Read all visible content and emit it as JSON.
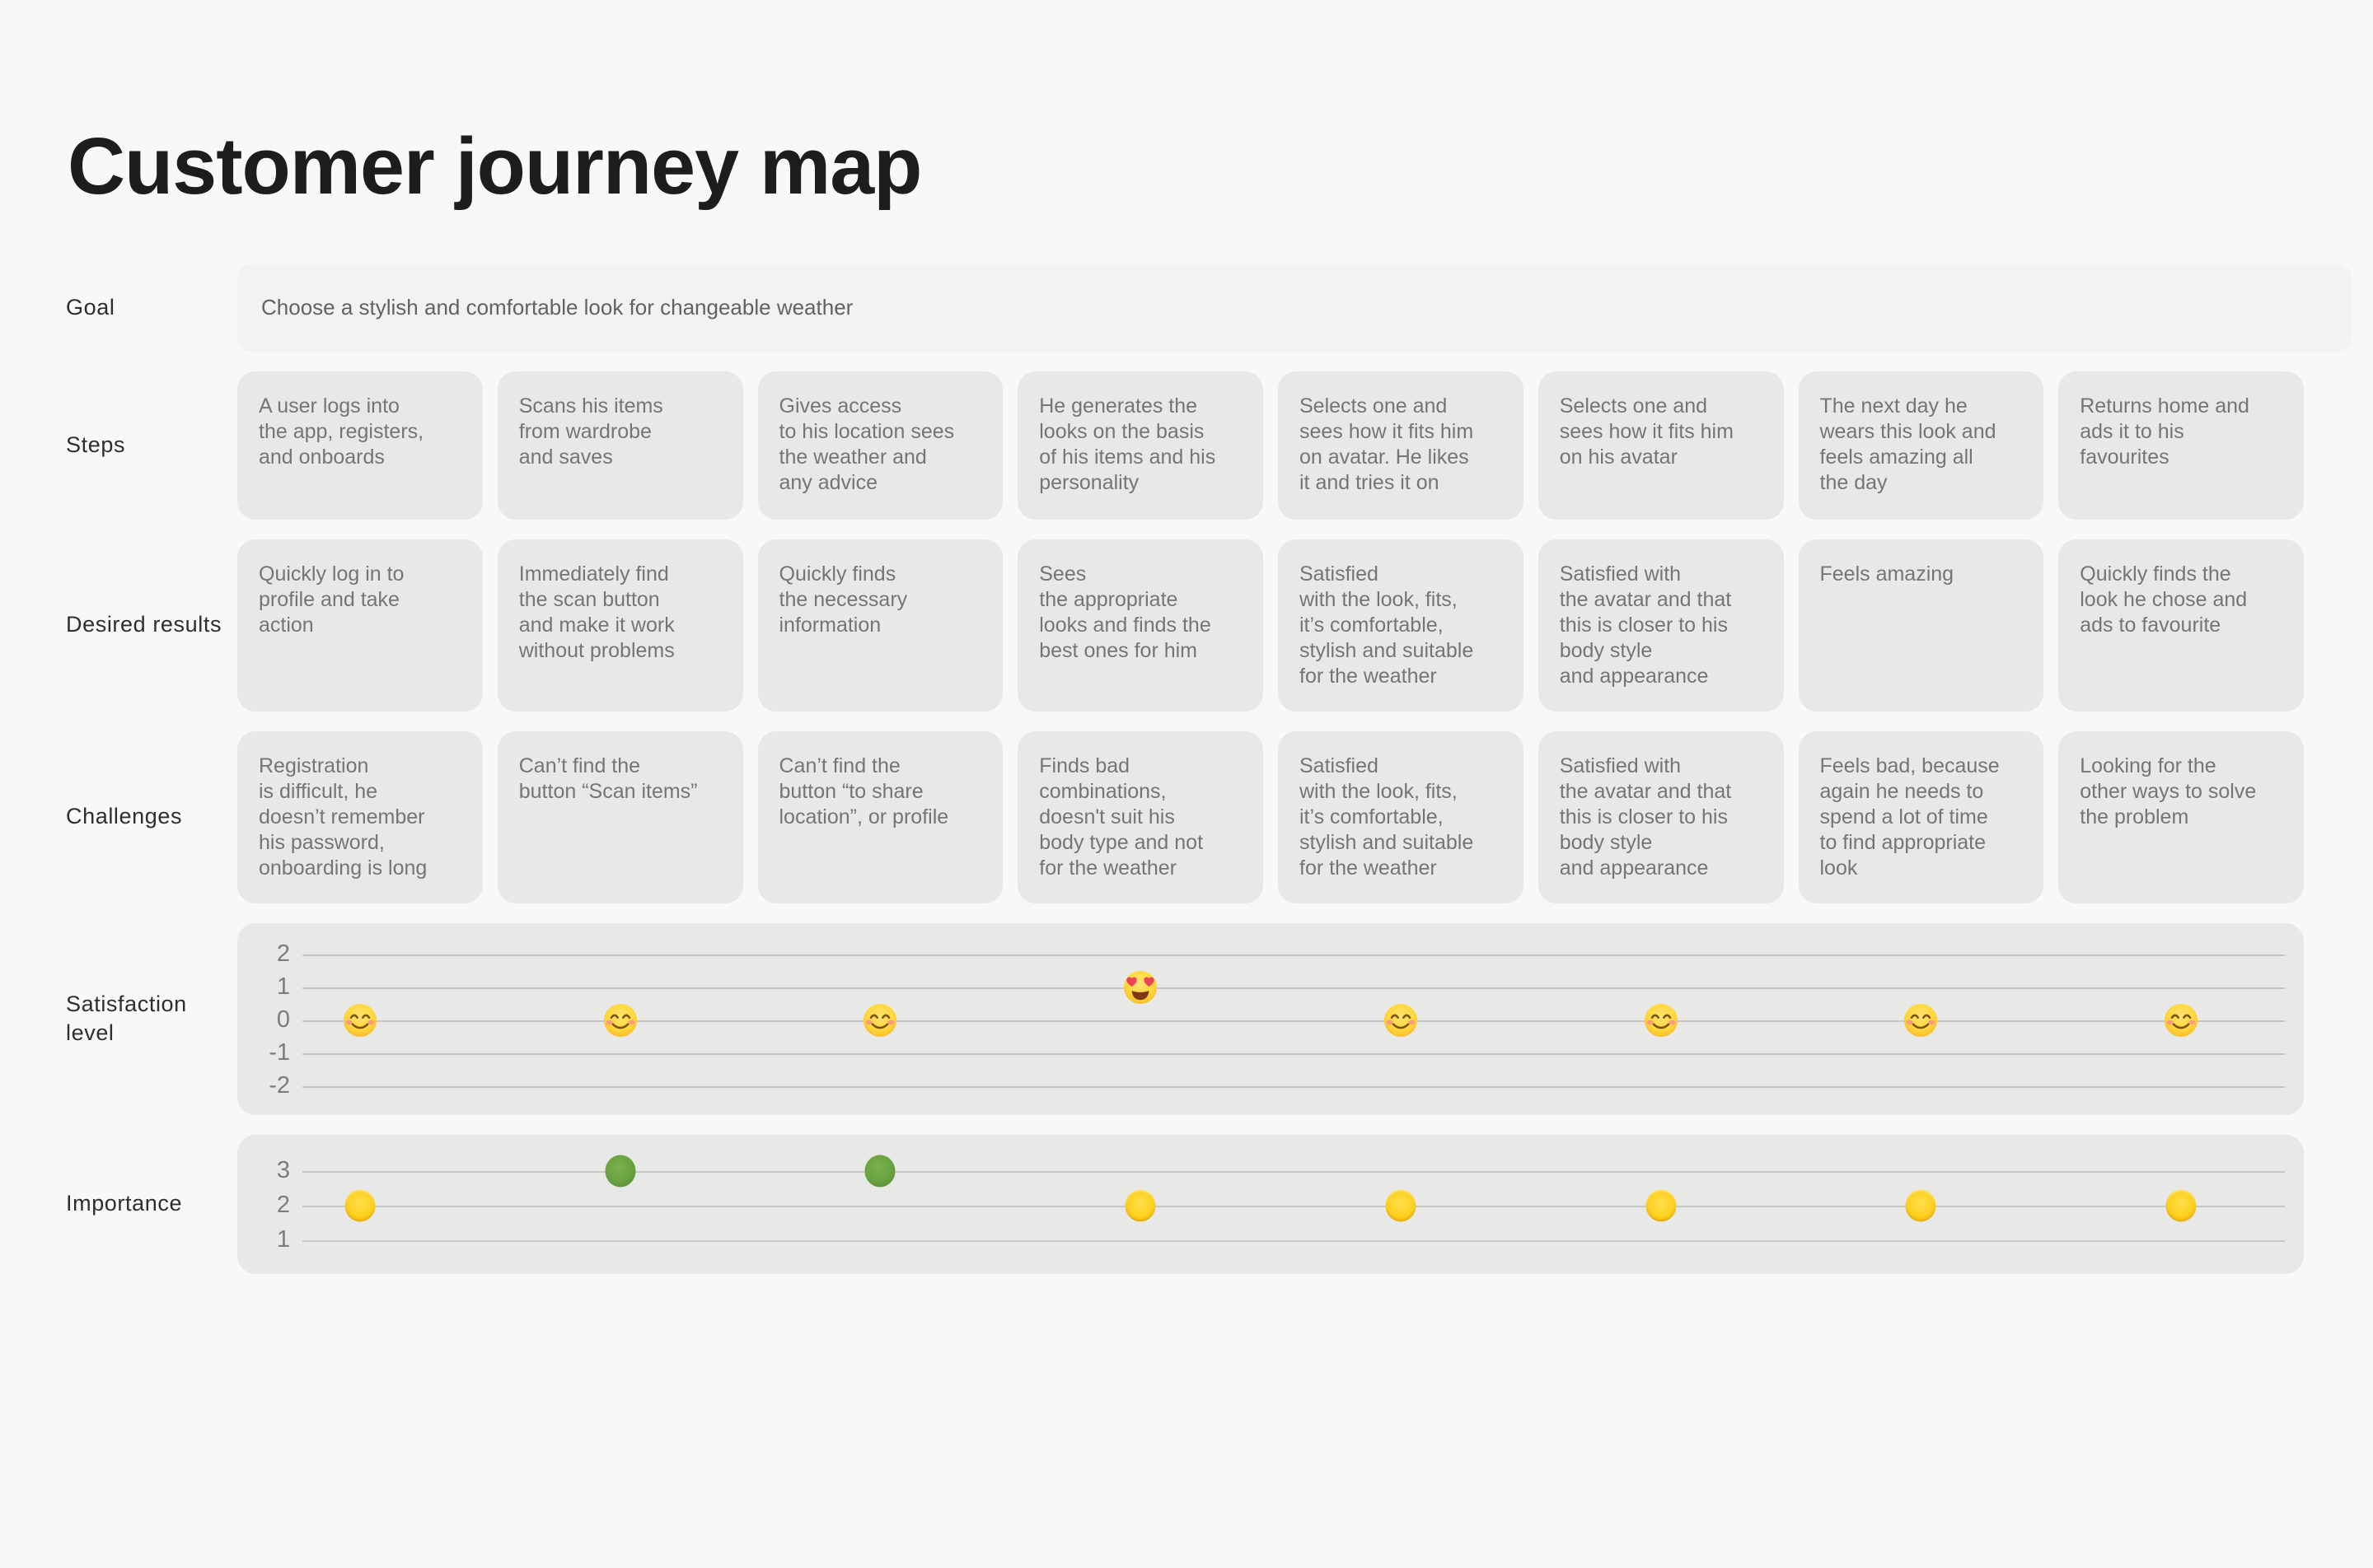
{
  "page": {
    "title": "Customer journey map"
  },
  "rows": {
    "goal": {
      "label": "Goal",
      "text": "Choose a stylish and comfortable look for changeable weather"
    },
    "steps": {
      "label": "Steps",
      "cards": [
        "A user logs into\nthe app, registers,\nand onboards",
        "Scans his items\nfrom wardrobe\nand saves",
        "Gives access\nto his location sees\nthe weather and\nany advice",
        "He generates the\nlooks on the basis\nof his items and his\npersonality",
        "Selects one and\nsees how it fits him\non avatar. He likes\nit and tries it on",
        "Selects one and\nsees how it fits him\non his avatar",
        "The next day he\nwears this look and\nfeels amazing all\nthe day",
        "Returns home and\nads it to his\nfavourites"
      ]
    },
    "desired": {
      "label": "Desired results",
      "cards": [
        "Quickly log in to\nprofile and take\naction",
        "Immediately find\nthe scan button\nand make it work\nwithout problems",
        "Quickly finds\nthe necessary\ninformation",
        "Sees\nthe appropriate\nlooks and finds the\nbest ones for him",
        "Satisfied\nwith the look, fits,\nit’s comfortable,\nstylish and suitable\nfor the weather",
        "Satisfied with\nthe avatar and that\nthis is closer to his\nbody style\nand appearance",
        "Feels amazing",
        "Quickly finds the\nlook he chose and\nads to favourite"
      ]
    },
    "challenges": {
      "label": "Challenges",
      "cards": [
        "Registration\nis  difficult, he\ndoesn’t remember\nhis password,\nonboarding is long",
        "Can’t find the\nbutton “Scan items”",
        "Can’t find the\nbutton “to share\nlocation”, or profile",
        "Finds bad\ncombinations,\ndoesn't suit his\nbody type and not\nfor the weather",
        "Satisfied\nwith the look, fits,\nit’s comfortable,\nstylish and suitable\nfor the weather",
        "Satisfied with\nthe avatar and that\nthis is closer to his\nbody style\nand appearance",
        "Feels bad, because\nagain he needs to\nspend a lot of time\nto find appropriate\nlook",
        "Looking for the\nother ways to solve\nthe problem"
      ]
    },
    "satisfaction": {
      "label": "Satisfaction level"
    },
    "importance": {
      "label": "Importance"
    }
  },
  "chart_data": [
    {
      "type": "scatter",
      "name": "satisfaction-level",
      "title": "Satisfaction level",
      "x": [
        1,
        2,
        3,
        4,
        5,
        6,
        7,
        8
      ],
      "values": [
        0,
        0,
        0,
        1,
        0,
        0,
        0,
        0
      ],
      "ylim": [
        -2,
        2
      ],
      "y_ticks": [
        2,
        1,
        0,
        -1,
        -2
      ],
      "grid": true,
      "points": [
        {
          "x": 1,
          "value": 0,
          "icon": "smiling-face-emoji"
        },
        {
          "x": 2,
          "value": 0,
          "icon": "smiling-face-emoji"
        },
        {
          "x": 3,
          "value": 0,
          "icon": "smiling-face-emoji"
        },
        {
          "x": 4,
          "value": 1,
          "icon": "heart-eyes-emoji"
        },
        {
          "x": 5,
          "value": 0,
          "icon": "smiling-face-emoji"
        },
        {
          "x": 6,
          "value": 0,
          "icon": "smiling-face-emoji"
        },
        {
          "x": 7,
          "value": 0,
          "icon": "smiling-face-emoji"
        },
        {
          "x": 8,
          "value": 0,
          "icon": "smiling-face-emoji"
        }
      ]
    },
    {
      "type": "scatter",
      "name": "importance",
      "title": "Importance",
      "x": [
        1,
        2,
        3,
        4,
        5,
        6,
        7,
        8
      ],
      "values": [
        2,
        3,
        3,
        2,
        2,
        2,
        2,
        2
      ],
      "ylim": [
        1,
        3
      ],
      "y_ticks": [
        3,
        2,
        1
      ],
      "grid": true,
      "marker_colors": {
        "yellow-dot": "#fdd01e",
        "green-dot": "#68a23f"
      },
      "points": [
        {
          "x": 1,
          "value": 2,
          "icon": "yellow-dot"
        },
        {
          "x": 2,
          "value": 3,
          "icon": "green-dot"
        },
        {
          "x": 3,
          "value": 3,
          "icon": "green-dot"
        },
        {
          "x": 4,
          "value": 2,
          "icon": "yellow-dot"
        },
        {
          "x": 5,
          "value": 2,
          "icon": "yellow-dot"
        },
        {
          "x": 6,
          "value": 2,
          "icon": "yellow-dot"
        },
        {
          "x": 7,
          "value": 2,
          "icon": "yellow-dot"
        },
        {
          "x": 8,
          "value": 2,
          "icon": "yellow-dot"
        }
      ]
    }
  ],
  "colors": {
    "background": "#f8f8f6",
    "card": "#e8e8e6",
    "goal_card": "#f2f2f0",
    "gridline": "#c7c7c5",
    "card_text": "#757575",
    "label_text": "#2e2e2e",
    "importance_yellow": "#fdd01e",
    "importance_green": "#68a23f"
  }
}
